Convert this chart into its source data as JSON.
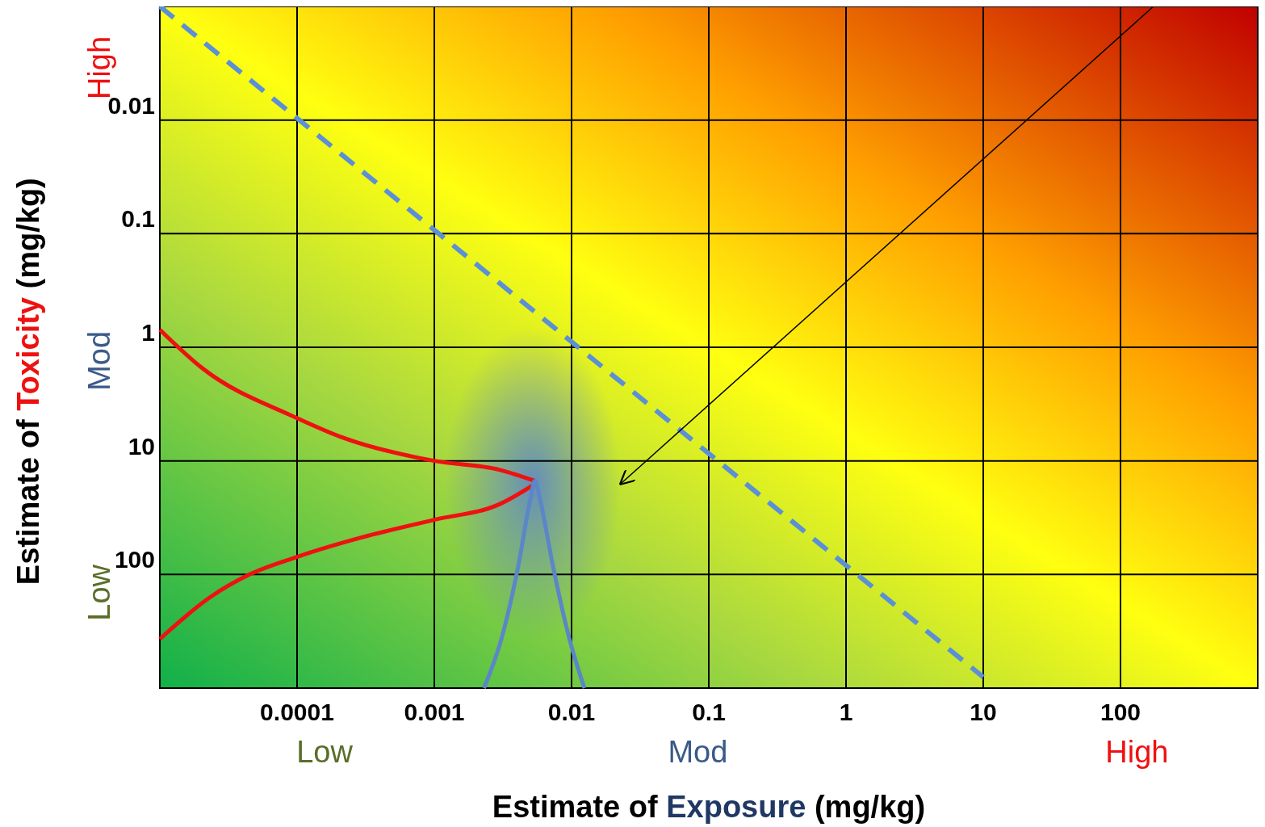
{
  "chart_data": {
    "type": "line",
    "xlabel": "Estimate of Exposure (mg/kg)",
    "ylabel": "Estimate of Toxicity (mg/kg)",
    "log": "xy",
    "xlim": [
      1e-05,
      1000
    ],
    "xticks": [
      {
        "value": 1e-05,
        "label": null
      },
      0.0001,
      0.001,
      0.01,
      0.1,
      1,
      10,
      100,
      {
        "value": 1000,
        "label": null
      }
    ],
    "ylim": [
      1000,
      0.001
    ],
    "yticks": [
      {
        "value": 0.001,
        "label": null
      },
      0.01,
      0.1,
      1,
      10,
      100,
      {
        "value": 1000,
        "label": null
      }
    ],
    "grid": true,
    "marker": "none",
    "annotations": [
      "Low",
      "Mod",
      "High",
      "Low",
      "Mod",
      "High"
    ],
    "series": [
      {
        "color": "#5b8fd6",
        "line_style": "dashed",
        "x": [
          1e-05,
          10
        ],
        "values": [
          0.001,
          800
        ]
      },
      {
        "color": "#ee1111",
        "line_style": "solid",
        "x": [
          1e-05,
          2e-05,
          0.0001,
          0.00022,
          0.001,
          0.003,
          0.0054
        ],
        "values": [
          0.7,
          1.5,
          4.2,
          6.3,
          10,
          12,
          15
        ]
      },
      {
        "color": "#ee1111",
        "line_style": "solid",
        "x": [
          1e-05,
          2.3e-05,
          4.5e-05,
          0.0001,
          0.0003,
          0.001,
          0.003,
          0.0054
        ],
        "values": [
          370,
          160,
          100,
          70,
          47,
          33,
          24,
          16
        ]
      },
      {
        "color": "#5b86c8",
        "line_style": "solid",
        "x": [
          0.0023,
          0.0031,
          0.0041,
          0.005,
          0.0054,
          0.0059,
          0.0073,
          0.0096,
          0.0124
        ],
        "values": [
          1000,
          360,
          83,
          22,
          15,
          22,
          83,
          360,
          1000
        ]
      }
    ]
  }
}
